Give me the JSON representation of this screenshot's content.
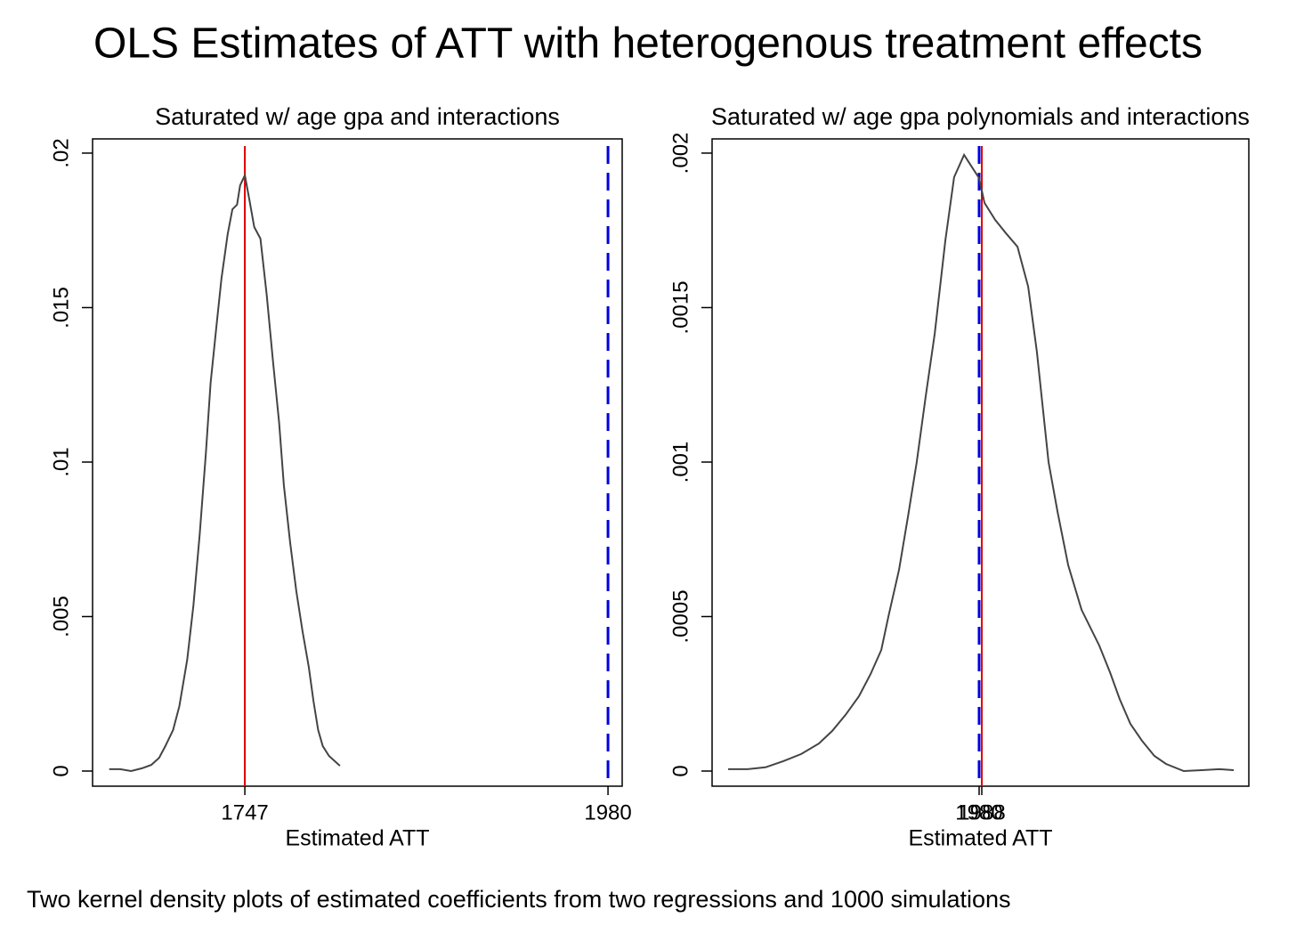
{
  "title": "OLS Estimates of ATT with heterogenous treatment effects",
  "caption": "Two kernel density plots of estimated coefficients from two regressions and 1000 simulations",
  "chart_data": [
    {
      "type": "line",
      "title": "Saturated w/ age gpa and interactions",
      "x_label": "Estimated ATT",
      "x": [
        1660,
        1667,
        1674,
        1681,
        1687,
        1692,
        1696,
        1701,
        1705,
        1710,
        1714,
        1718,
        1722,
        1725,
        1729,
        1732,
        1736,
        1739,
        1742,
        1744,
        1747,
        1750,
        1753,
        1757,
        1761,
        1765,
        1769,
        1772,
        1776,
        1780,
        1784,
        1788,
        1791,
        1794,
        1797,
        1801,
        1808
      ],
      "series": [
        {
          "color": "#444444",
          "values": [
            6e-05,
            6e-05,
            0,
            9e-05,
            0.0002,
            0.00043,
            0.00081,
            0.00133,
            0.0021,
            0.0036,
            0.00536,
            0.00764,
            0.01029,
            0.01256,
            0.01452,
            0.01594,
            0.01738,
            0.01818,
            0.01833,
            0.01896,
            0.01928,
            0.01847,
            0.01761,
            0.01723,
            0.01542,
            0.01329,
            0.01127,
            0.00925,
            0.00741,
            0.00582,
            0.00452,
            0.00337,
            0.00228,
            0.00133,
            0.00081,
            0.00049,
            0.00017
          ]
        }
      ],
      "reference_lines": [
        {
          "value": 1747,
          "color": "#e00000",
          "dashed": false
        },
        {
          "value": 1980,
          "color": "#0000e0",
          "dashed": true
        }
      ],
      "xlim": [
        1649.3,
        1989.1
      ],
      "ylim": [
        -0.00049,
        0.02046
      ],
      "xticks": [
        1747,
        1980
      ],
      "yticks": [
        0,
        {
          "value": 0.005,
          "label": ".005"
        },
        {
          "value": 0.01,
          "label": ".01"
        },
        {
          "value": 0.015,
          "label": ".015"
        },
        {
          "value": 0.02,
          "label": ".02"
        }
      ]
    },
    {
      "type": "line",
      "title": "Saturated w/ age gpa polynomials and interactions",
      "x_label": "Estimated ATT",
      "x": [
        1228,
        1287,
        1340,
        1393,
        1447,
        1500,
        1540,
        1580,
        1620,
        1655,
        1687,
        1708,
        1740,
        1767,
        1793,
        1820,
        1847,
        1879,
        1905,
        1935,
        1959,
        1980,
        1996,
        2028,
        2060,
        2095,
        2127,
        2153,
        2188,
        2215,
        2247,
        2287,
        2340,
        2372,
        2401,
        2433,
        2468,
        2505,
        2540,
        2593,
        2647,
        2700,
        2743
      ],
      "series": [
        {
          "color": "#444444",
          "values": [
            6e-06,
            6e-06,
            1.2e-05,
            3.2e-05,
            5.5e-05,
            8.9e-05,
            0.00013,
            0.000182,
            0.000242,
            0.000314,
            0.000392,
            0.000499,
            0.000651,
            0.000824,
            0.001,
            0.001213,
            0.001415,
            0.001718,
            0.001922,
            0.001994,
            0.001954,
            0.001919,
            0.001839,
            0.001784,
            0.001741,
            0.001697,
            0.001568,
            0.001357,
            0.001,
            0.000839,
            0.000666,
            0.000522,
            0.000406,
            0.00032,
            0.000233,
            0.000153,
            9.8e-05,
            4.9e-05,
            2.3e-05,
            0,
            3e-06,
            6e-06,
            3e-06
          ]
        }
      ],
      "reference_lines": [
        {
          "value": 1980,
          "color": "#0000e0",
          "dashed": true
        },
        {
          "value": 1988,
          "color": "#e00000",
          "dashed": false
        }
      ],
      "xlim": [
        1180,
        2788
      ],
      "ylim": [
        -4.9e-05,
        0.002046
      ],
      "xticks": [
        1980,
        1988
      ],
      "yticks": [
        0,
        {
          "value": 0.0005,
          "label": ".0005"
        },
        {
          "value": 0.001,
          "label": ".001"
        },
        {
          "value": 0.0015,
          "label": ".0015"
        },
        {
          "value": 0.002,
          "label": ".002"
        }
      ]
    }
  ]
}
